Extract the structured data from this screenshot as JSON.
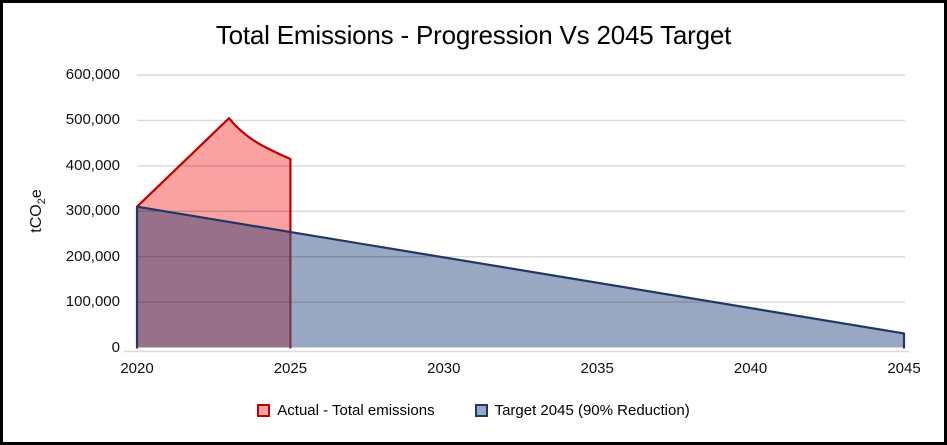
{
  "chart_data": {
    "type": "area",
    "title": "Total Emissions - Progression Vs 2045 Target",
    "ylabel": "tCO2e",
    "ylabel_parts": {
      "prefix": "tCO",
      "sub": "2",
      "suffix": "e"
    },
    "xlabel": "",
    "xlim": [
      2020,
      2045
    ],
    "ylim": [
      0,
      600000
    ],
    "xticks": [
      2020,
      2025,
      2030,
      2035,
      2040,
      2045
    ],
    "yticks": [
      0,
      100000,
      200000,
      300000,
      400000,
      500000,
      600000
    ],
    "grid": "horizontal",
    "legend_position": "bottom",
    "series": [
      {
        "name": "Actual - Total emissions",
        "line_color": "#C00000",
        "fill_color": "#FAA1A1",
        "points": [
          [
            2020,
            310000
          ],
          [
            2021,
            375000
          ],
          [
            2022,
            440000
          ],
          [
            2023,
            505000
          ],
          [
            2024,
            448000
          ],
          [
            2025,
            415000
          ]
        ]
      },
      {
        "name": "Target 2045 (90% Reduction)",
        "line_color": "#203864",
        "fill_color": "#99A8C2",
        "points": [
          [
            2020,
            310000
          ],
          [
            2045,
            31000
          ]
        ]
      }
    ],
    "overlap_fill": "#997089",
    "overlap_edge_color": "#82304E",
    "gridline_color": "#D9D9D9",
    "axis_line_color": "#D9D9D9"
  }
}
